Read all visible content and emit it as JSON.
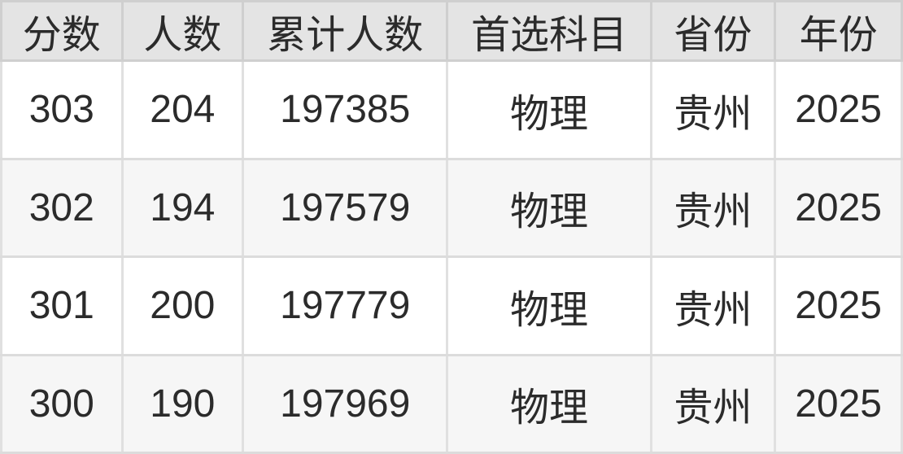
{
  "chart_data": {
    "type": "table",
    "columns": [
      "分数",
      "人数",
      "累计人数",
      "首选科目",
      "省份",
      "年份"
    ],
    "rows": [
      [
        "303",
        "204",
        "197385",
        "物理",
        "贵州",
        "2025"
      ],
      [
        "302",
        "194",
        "197579",
        "物理",
        "贵州",
        "2025"
      ],
      [
        "301",
        "200",
        "197779",
        "物理",
        "贵州",
        "2025"
      ],
      [
        "300",
        "190",
        "197969",
        "物理",
        "贵州",
        "2025"
      ]
    ],
    "layout": {
      "header_position": "top",
      "grid": "on",
      "row_striping": "even-rows-shaded"
    }
  },
  "colors": {
    "header_bg": "#e4e4e4",
    "header_border": "#cfcfcf",
    "row_bg": "#ffffff",
    "row_alt_bg": "#f6f6f6",
    "cell_border": "#e0e0e0",
    "row_border": "#dcdcdc",
    "text": "#2b2b2b"
  }
}
